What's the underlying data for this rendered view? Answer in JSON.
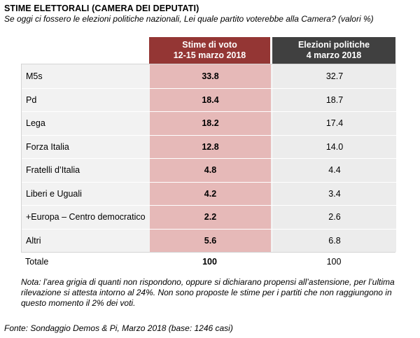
{
  "title": "STIME ELETTORALI (CAMERA DEI DEPUTATI)",
  "subtitle": "Se oggi ci fossero le elezioni politiche nazionali, Lei quale partito voterebbe alla Camera?  (valori %)",
  "chart_data": {
    "type": "table",
    "columns": [
      {
        "line1": "Stime di voto",
        "line2": "12-15 marzo 2018",
        "color": "#943634"
      },
      {
        "line1": "Elezioni politiche",
        "line2": "4 marzo 2018",
        "color": "#404040"
      }
    ],
    "rows": [
      {
        "label": "M5s",
        "v1": "33.8",
        "v2": "32.7"
      },
      {
        "label": "Pd",
        "v1": "18.4",
        "v2": "18.7"
      },
      {
        "label": "Lega",
        "v1": "18.2",
        "v2": "17.4"
      },
      {
        "label": "Forza Italia",
        "v1": "12.8",
        "v2": "14.0"
      },
      {
        "label": "Fratelli d’Italia",
        "v1": "4.8",
        "v2": "4.4"
      },
      {
        "label": "Liberi e Uguali",
        "v1": "4.2",
        "v2": "3.4"
      },
      {
        "label": "+Europa – Centro democratico",
        "v1": "2.2",
        "v2": "2.6"
      },
      {
        "label": "Altri",
        "v1": "5.6",
        "v2": "6.8"
      }
    ],
    "total": {
      "label": "Totale",
      "v1": "100",
      "v2": "100"
    }
  },
  "note": "Nota: l’area grigia di quanti non rispondono, oppure si dichiarano propensi all’astensione, per l’ultima rilevazione si attesta intorno al 24%. Non sono proposte le stime per i partiti che non raggiungono in questo momento il 2% dei voti.",
  "source": "Fonte: Sondaggio Demos & Pi, Marzo 2018 (base: 1246 casi)"
}
